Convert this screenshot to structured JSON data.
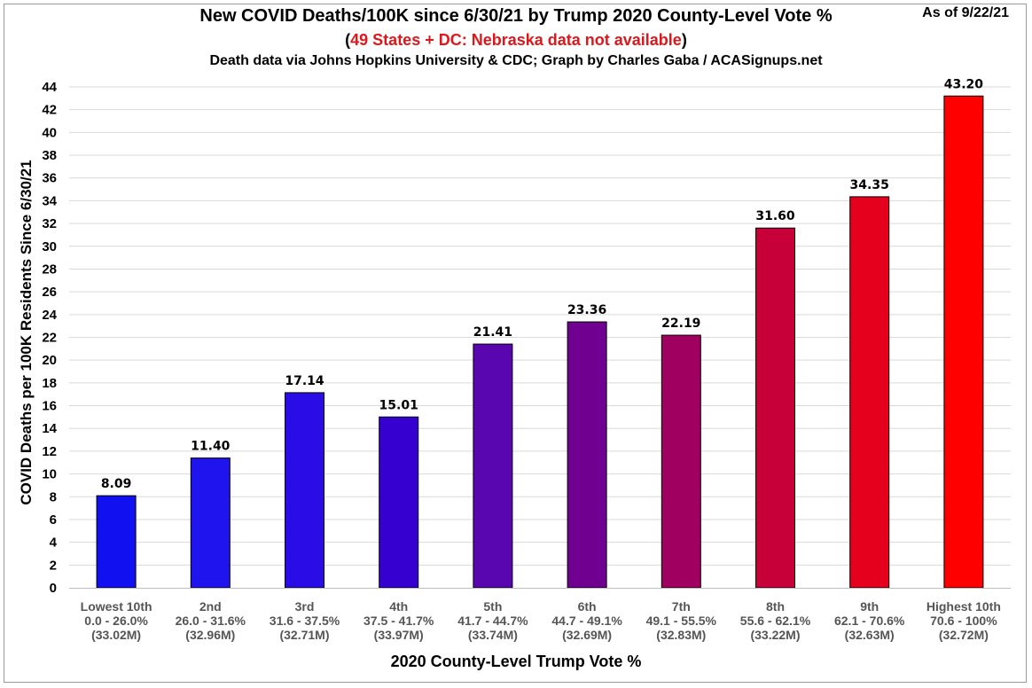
{
  "chart_data": {
    "type": "bar",
    "title": "New COVID Deaths/100K since 6/30/21 by Trump 2020 County-Level Vote %",
    "subtitle_note": "49 States + DC: Nebraska data not available",
    "subtitle_source": "Death data via Johns Hopkins University & CDC; Graph by Charles Gaba / ACASignups.net",
    "as_of": "As of 9/22/21",
    "xlabel": "2020 County-Level Trump Vote %",
    "ylabel": "COVID Deaths per 100K Residents Since 6/30/21",
    "ylim": [
      0,
      44
    ],
    "ytick_step": 2,
    "grid": true,
    "categories": [
      {
        "name": "Lowest 10th",
        "range": "0.0 - 26.0%",
        "pop": "(33.02M)"
      },
      {
        "name": "2nd",
        "range": "26.0 - 31.6%",
        "pop": "(32.96M)"
      },
      {
        "name": "3rd",
        "range": "31.6 - 37.5%",
        "pop": "(32.71M)"
      },
      {
        "name": "4th",
        "range": "37.5 - 41.7%",
        "pop": "(33.97M)"
      },
      {
        "name": "5th",
        "range": "41.7 - 44.7%",
        "pop": "(33.74M)"
      },
      {
        "name": "6th",
        "range": "44.7 - 49.1%",
        "pop": "(32.69M)"
      },
      {
        "name": "7th",
        "range": "49.1 - 55.5%",
        "pop": "(32.83M)"
      },
      {
        "name": "8th",
        "range": "55.6 - 62.1%",
        "pop": "(33.22M)"
      },
      {
        "name": "9th",
        "range": "62.1 - 70.6%",
        "pop": "(32.63M)"
      },
      {
        "name": "Highest 10th",
        "range": "70.6 - 100%",
        "pop": "(32.72M)"
      }
    ],
    "values": [
      8.09,
      11.4,
      17.14,
      15.01,
      21.41,
      23.36,
      22.19,
      31.6,
      34.35,
      43.2
    ],
    "value_labels": [
      "8.09",
      "11.40",
      "17.14",
      "15.01",
      "21.41",
      "23.36",
      "22.19",
      "31.60",
      "34.35",
      "43.20"
    ],
    "colors": [
      "#1010f0",
      "#1f14ee",
      "#2a0de6",
      "#3500d0",
      "#5a06b0",
      "#700090",
      "#a00060",
      "#c8003a",
      "#e5001e",
      "#fe0000"
    ]
  }
}
